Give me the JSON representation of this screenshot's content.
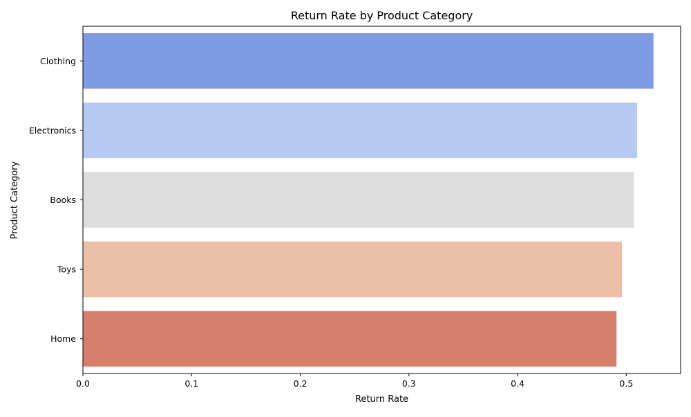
{
  "chart_data": {
    "type": "bar",
    "orientation": "horizontal",
    "title": "Return Rate by Product Category",
    "xlabel": "Return Rate",
    "ylabel": "Product Category",
    "categories": [
      "Clothing",
      "Electronics",
      "Books",
      "Toys",
      "Home"
    ],
    "values": [
      0.525,
      0.51,
      0.507,
      0.496,
      0.491
    ],
    "colors": [
      "#7f9be4",
      "#b5c9f4",
      "#dddddd",
      "#ecbea8",
      "#d57f6c"
    ],
    "xlim": [
      0,
      0.55
    ],
    "xticks": [
      0.0,
      0.1,
      0.2,
      0.3,
      0.4,
      0.5
    ],
    "xtick_labels": [
      "0.0",
      "0.1",
      "0.2",
      "0.3",
      "0.4",
      "0.5"
    ],
    "grid": false,
    "legend": "none"
  }
}
